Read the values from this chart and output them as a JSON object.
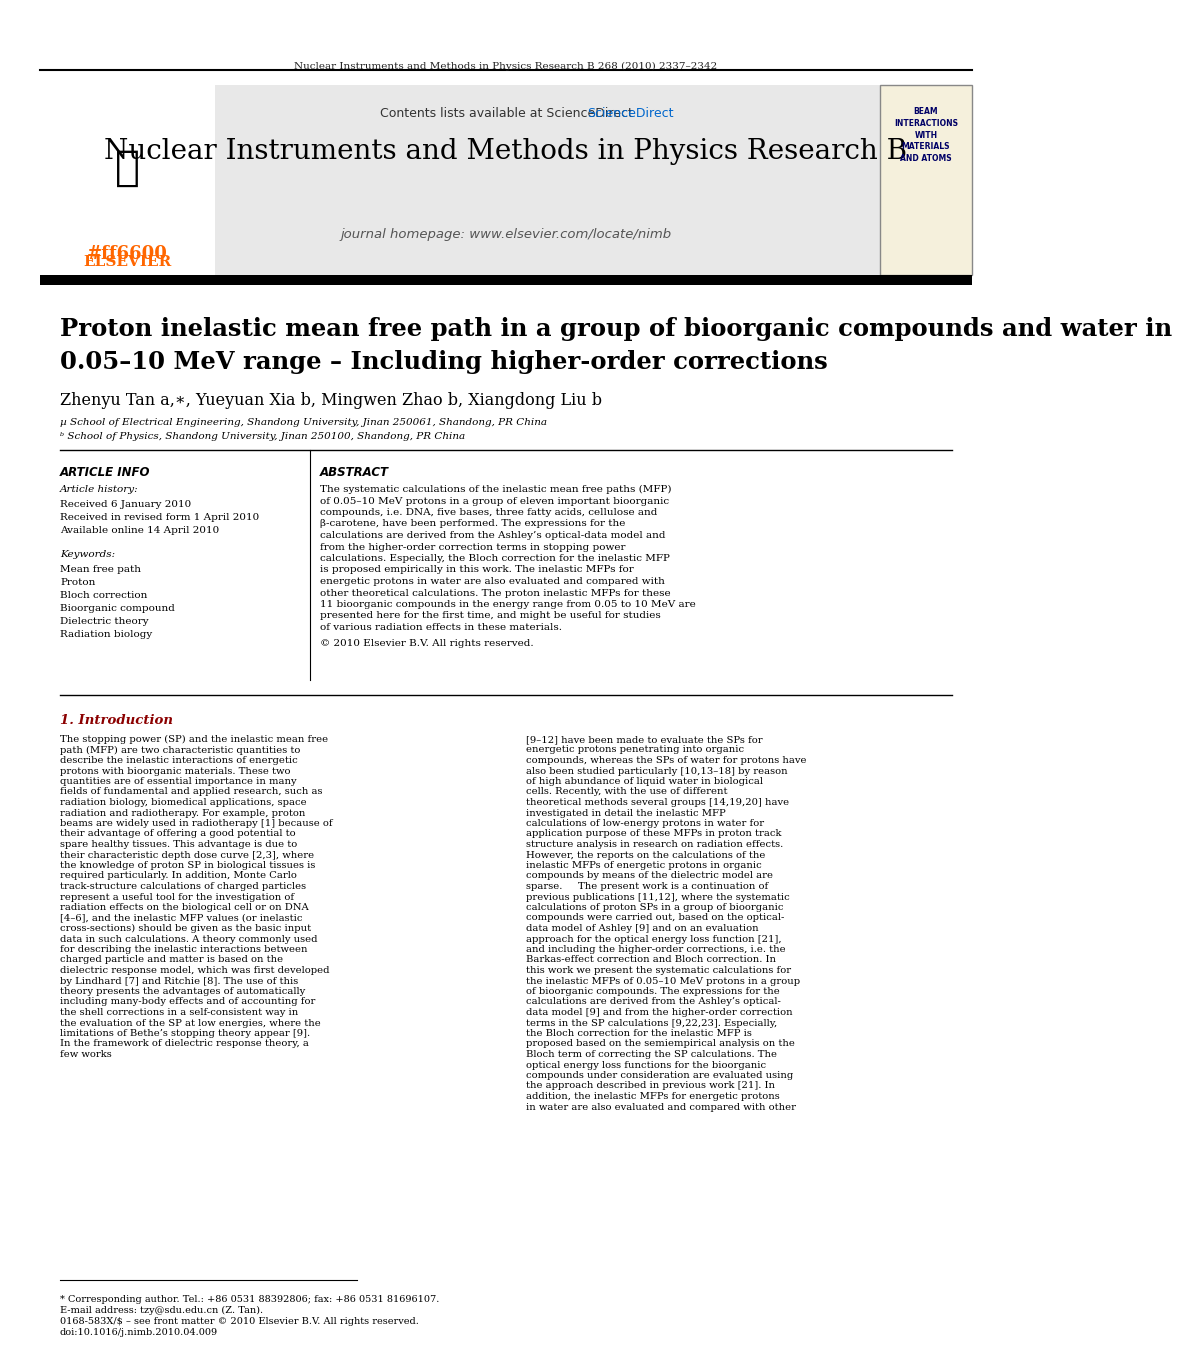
{
  "journal_header_text": "Nuclear Instruments and Methods in Physics Research B 268 (2010) 2337–2342",
  "contents_text": "Contents lists available at ScienceDirect",
  "sciencedirect_color": "#0066cc",
  "journal_title": "Nuclear Instruments and Methods in Physics Research B",
  "journal_homepage": "journal homepage: www.elsevier.com/locate/nimb",
  "elsevier_color": "#ff6600",
  "header_bg": "#e8e8e8",
  "article_title_line1": "Proton inelastic mean free path in a group of bioorganic compounds and water in",
  "article_title_line2": "0.05–10 MeV range – Including higher-order corrections",
  "authors": "Zhenyu Tan a,∗, Yueyuan Xia b, Mingwen Zhao b, Xiangdong Liu b",
  "affil_a": "µ School of Electrical Engineering, Shandong University, Jinan 250061, Shandong, PR China",
  "affil_b": "ᵇ School of Physics, Shandong University, Jinan 250100, Shandong, PR China",
  "article_info_title": "ARTICLE INFO",
  "abstract_title": "ABSTRACT",
  "article_history_label": "Article history:",
  "received_1": "Received 6 January 2010",
  "received_2": "Received in revised form 1 April 2010",
  "available": "Available online 14 April 2010",
  "keywords_label": "Keywords:",
  "keywords": [
    "Mean free path",
    "Proton",
    "Bloch correction",
    "Bioorganic compound",
    "Dielectric theory",
    "Radiation biology"
  ],
  "abstract_text": "The systematic calculations of the inelastic mean free paths (MFP) of 0.05–10 MeV protons in a group of eleven important bioorganic compounds, i.e. DNA, five bases, three fatty acids, cellulose and β-carotene, have been performed. The expressions for the calculations are derived from the Ashley’s optical-data model and from the higher-order correction terms in stopping power calculations. Especially, the Bloch correction for the inelastic MFP is proposed empirically in this work. The inelastic MFPs for energetic protons in water are also evaluated and compared with other theoretical calculations. The proton inelastic MFPs for these 11 bioorganic compounds in the energy range from 0.05 to 10 MeV are presented here for the first time, and might be useful for studies of various radiation effects in these materials.",
  "copyright_text": "© 2010 Elsevier B.V. All rights reserved.",
  "intro_title": "1. Introduction",
  "intro_text_col1": "The stopping power (SP) and the inelastic mean free path (MFP) are two characteristic quantities to describe the inelastic interactions of energetic protons with bioorganic materials. These two quantities are of essential importance in many fields of fundamental and applied research, such as radiation biology, biomedical applications, space radiation and radiotherapy. For example, proton beams are widely used in radiotherapy [1] because of their advantage of offering a good potential to spare healthy tissues. This advantage is due to their characteristic depth dose curve [2,3], where the knowledge of proton SP in biological tissues is required particularly. In addition, Monte Carlo track-structure calculations of charged particles represent a useful tool for the investigation of radiation effects on the biological cell or on DNA [4–6], and the inelastic MFP values (or inelastic cross-sections) should be given as the basic input data in such calculations. A theory commonly used for describing the inelastic interactions between charged particle and matter is based on the dielectric response model, which was first developed by Lindhard [7] and Ritchie [8]. The use of this theory presents the advantages of automatically including many-body effects and of accounting for the shell corrections in a self-consistent way in the evaluation of the SP at low energies, where the limitations of Bethe’s stopping theory appear [9]. In the framework of dielectric response theory, a few works",
  "intro_text_col2": "[9–12] have been made to evaluate the SPs for energetic protons penetrating into organic compounds, whereas the SPs of water for protons have also been studied particularly [10,13–18] by reason of high abundance of liquid water in biological cells. Recently, with the use of different theoretical methods several groups [14,19,20] have investigated in detail the inelastic MFP calculations of low-energy protons in water for application purpose of these MFPs in proton track structure analysis in research on radiation effects. However, the reports on the calculations of the inelastic MFPs of energetic protons in organic compounds by means of the dielectric model are sparse.\n    The present work is a continuation of previous publications [11,12], where the systematic calculations of proton SPs in a group of bioorganic compounds were carried out, based on the optical-data model of Ashley [9] and on an evaluation approach for the optical energy loss function [21], and including the higher-order corrections, i.e. the Barkas-effect correction and Bloch correction. In this work we present the systematic calculations for the inelastic MFPs of 0.05–10 MeV protons in a group of bioorganic compounds. The expressions for the calculations are derived from the Ashley’s optical-data model [9] and from the higher-order correction terms in the SP calculations [9,22,23]. Especially, the Bloch correction for the inelastic MFP is proposed based on the semiempirical analysis on the Bloch term of correcting the SP calculations. The optical energy loss functions for the bioorganic compounds under consideration are evaluated using the approach described in previous work [21]. In addition, the inelastic MFPs for energetic protons in water are also evaluated and compared with other",
  "footnote_star": "* Corresponding author. Tel.: +86 0531 88392806; fax: +86 0531 81696107.",
  "footnote_email": "E-mail address: tzy@sdu.edu.cn (Z. Tan).",
  "footnote_issn": "0168-583X/$ – see front matter © 2010 Elsevier B.V. All rights reserved.",
  "footnote_doi": "doi:10.1016/j.nimb.2010.04.009",
  "bg_color": "#ffffff",
  "text_color": "#000000",
  "intro_color": "#8b0000"
}
